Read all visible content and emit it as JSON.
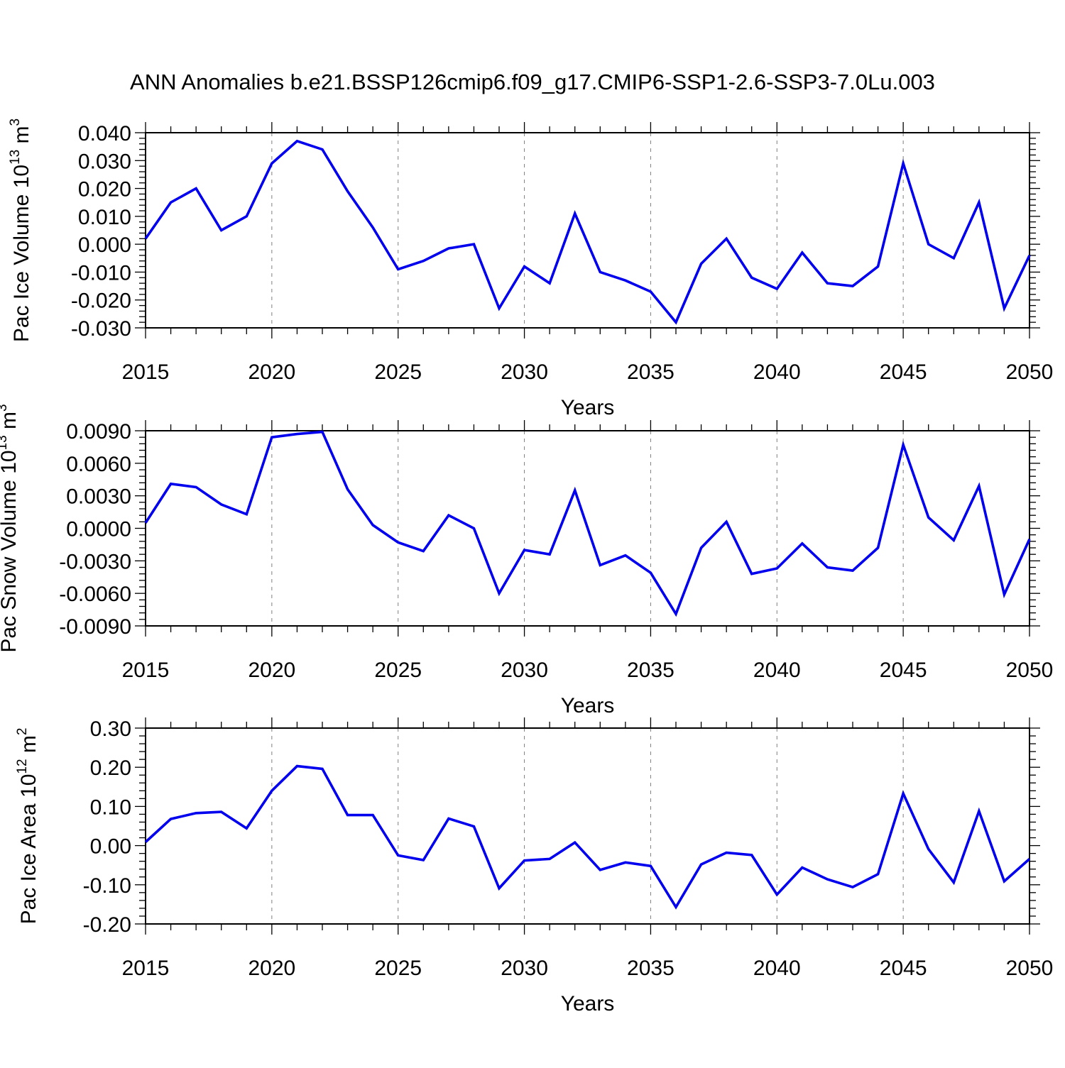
{
  "title": "ANN Anomalies b.e21.BSSP126cmip6.f09_g17.CMIP6-SSP1-2.6-SSP3-7.0Lu.003",
  "colors": {
    "line": "#0000EE",
    "axis": "#000000",
    "grid": "#7f7f7f",
    "background": "#ffffff"
  },
  "years": [
    2015,
    2016,
    2017,
    2018,
    2019,
    2020,
    2021,
    2022,
    2023,
    2024,
    2025,
    2026,
    2027,
    2028,
    2029,
    2030,
    2031,
    2032,
    2033,
    2034,
    2035,
    2036,
    2037,
    2038,
    2039,
    2040,
    2041,
    2042,
    2043,
    2044,
    2045,
    2046,
    2047,
    2048,
    2049,
    2050
  ],
  "chart_data": [
    {
      "type": "line",
      "name": "pac-ice-volume",
      "ylabel_segments": [
        {
          "t": "Pac Ice Volume 10"
        },
        {
          "t": "13",
          "sup": true
        },
        {
          "t": " m"
        },
        {
          "t": "3",
          "sup": true
        }
      ],
      "xlabel": "Years",
      "xlim": [
        2015,
        2050
      ],
      "ylim": [
        -0.03,
        0.04
      ],
      "yticks": [
        0.04,
        0.03,
        0.02,
        0.01,
        0.0,
        -0.01,
        -0.02,
        -0.03
      ],
      "ytick_labels": [
        "0.040",
        "0.030",
        "0.020",
        "0.010",
        "0.000",
        "-0.010",
        "-0.020",
        "-0.030"
      ],
      "yminor_step": 0.002,
      "xtick_years": [
        2015,
        2020,
        2025,
        2030,
        2035,
        2040,
        2045,
        2050
      ],
      "xtick_labels": [
        "2015",
        "2020",
        "2025",
        "2030",
        "2035",
        "2040",
        "2045",
        "2050"
      ],
      "grid_years": [
        2020,
        2025,
        2030,
        2035,
        2040,
        2045
      ],
      "values": [
        0.002,
        0.015,
        0.02,
        0.005,
        0.01,
        0.029,
        0.037,
        0.034,
        0.019,
        0.006,
        -0.009,
        -0.006,
        -0.0015,
        0.0,
        -0.023,
        -0.008,
        -0.014,
        0.011,
        -0.01,
        -0.013,
        -0.017,
        -0.028,
        -0.007,
        0.002,
        -0.012,
        -0.016,
        -0.003,
        -0.014,
        -0.015,
        -0.008,
        0.029,
        0.0,
        -0.005,
        0.015,
        -0.023,
        -0.004
      ]
    },
    {
      "type": "line",
      "name": "pac-snow-volume",
      "ylabel_segments": [
        {
          "t": "Pac Snow Volume 10"
        },
        {
          "t": "13",
          "sup": true
        },
        {
          "t": " m"
        },
        {
          "t": "3",
          "sup": true
        }
      ],
      "xlabel": "Years",
      "xlim": [
        2015,
        2050
      ],
      "ylim": [
        -0.009,
        0.009
      ],
      "yticks": [
        0.009,
        0.006,
        0.003,
        0.0,
        -0.003,
        -0.006,
        -0.009
      ],
      "ytick_labels": [
        "0.0090",
        "0.0060",
        "0.0030",
        "0.0000",
        "-0.0030",
        "-0.0060",
        "-0.0090"
      ],
      "yminor_step": 0.0006,
      "xtick_years": [
        2015,
        2020,
        2025,
        2030,
        2035,
        2040,
        2045,
        2050
      ],
      "xtick_labels": [
        "2015",
        "2020",
        "2025",
        "2030",
        "2035",
        "2040",
        "2045",
        "2050"
      ],
      "grid_years": [
        2020,
        2025,
        2030,
        2035,
        2040,
        2045
      ],
      "values": [
        0.0005,
        0.0041,
        0.0038,
        0.0022,
        0.0013,
        0.0084,
        0.0087,
        0.0089,
        0.0036,
        0.0003,
        -0.0013,
        -0.0021,
        0.0012,
        0.0,
        -0.006,
        -0.002,
        -0.0024,
        0.0035,
        -0.0034,
        -0.0025,
        -0.0041,
        -0.0079,
        -0.0018,
        0.0006,
        -0.0042,
        -0.0037,
        -0.0014,
        -0.0036,
        -0.0039,
        -0.0018,
        0.0077,
        0.001,
        -0.0011,
        0.0039,
        -0.0061,
        -0.001
      ]
    },
    {
      "type": "line",
      "name": "pac-ice-area",
      "ylabel_segments": [
        {
          "t": "Pac Ice Area 10"
        },
        {
          "t": "12",
          "sup": true
        },
        {
          "t": " m"
        },
        {
          "t": "2",
          "sup": true
        }
      ],
      "xlabel": "Years",
      "xlim": [
        2015,
        2050
      ],
      "ylim": [
        -0.2,
        0.3
      ],
      "yticks": [
        0.3,
        0.2,
        0.1,
        0.0,
        -0.1,
        -0.2
      ],
      "ytick_labels": [
        "0.30",
        "0.20",
        "0.10",
        "0.00",
        "-0.10",
        "-0.20"
      ],
      "yminor_step": 0.02,
      "xtick_years": [
        2015,
        2020,
        2025,
        2030,
        2035,
        2040,
        2045,
        2050
      ],
      "xtick_labels": [
        "2015",
        "2020",
        "2025",
        "2030",
        "2035",
        "2040",
        "2045",
        "2050"
      ],
      "grid_years": [
        2020,
        2025,
        2030,
        2035,
        2040,
        2045
      ],
      "values": [
        0.009,
        0.068,
        0.083,
        0.086,
        0.044,
        0.14,
        0.203,
        0.196,
        0.078,
        0.078,
        -0.025,
        -0.037,
        0.069,
        0.049,
        -0.109,
        -0.038,
        -0.034,
        0.008,
        -0.062,
        -0.043,
        -0.052,
        -0.157,
        -0.048,
        -0.018,
        -0.024,
        -0.125,
        -0.056,
        -0.086,
        -0.106,
        -0.073,
        0.133,
        -0.009,
        -0.094,
        0.088,
        -0.091,
        -0.034
      ]
    }
  ]
}
